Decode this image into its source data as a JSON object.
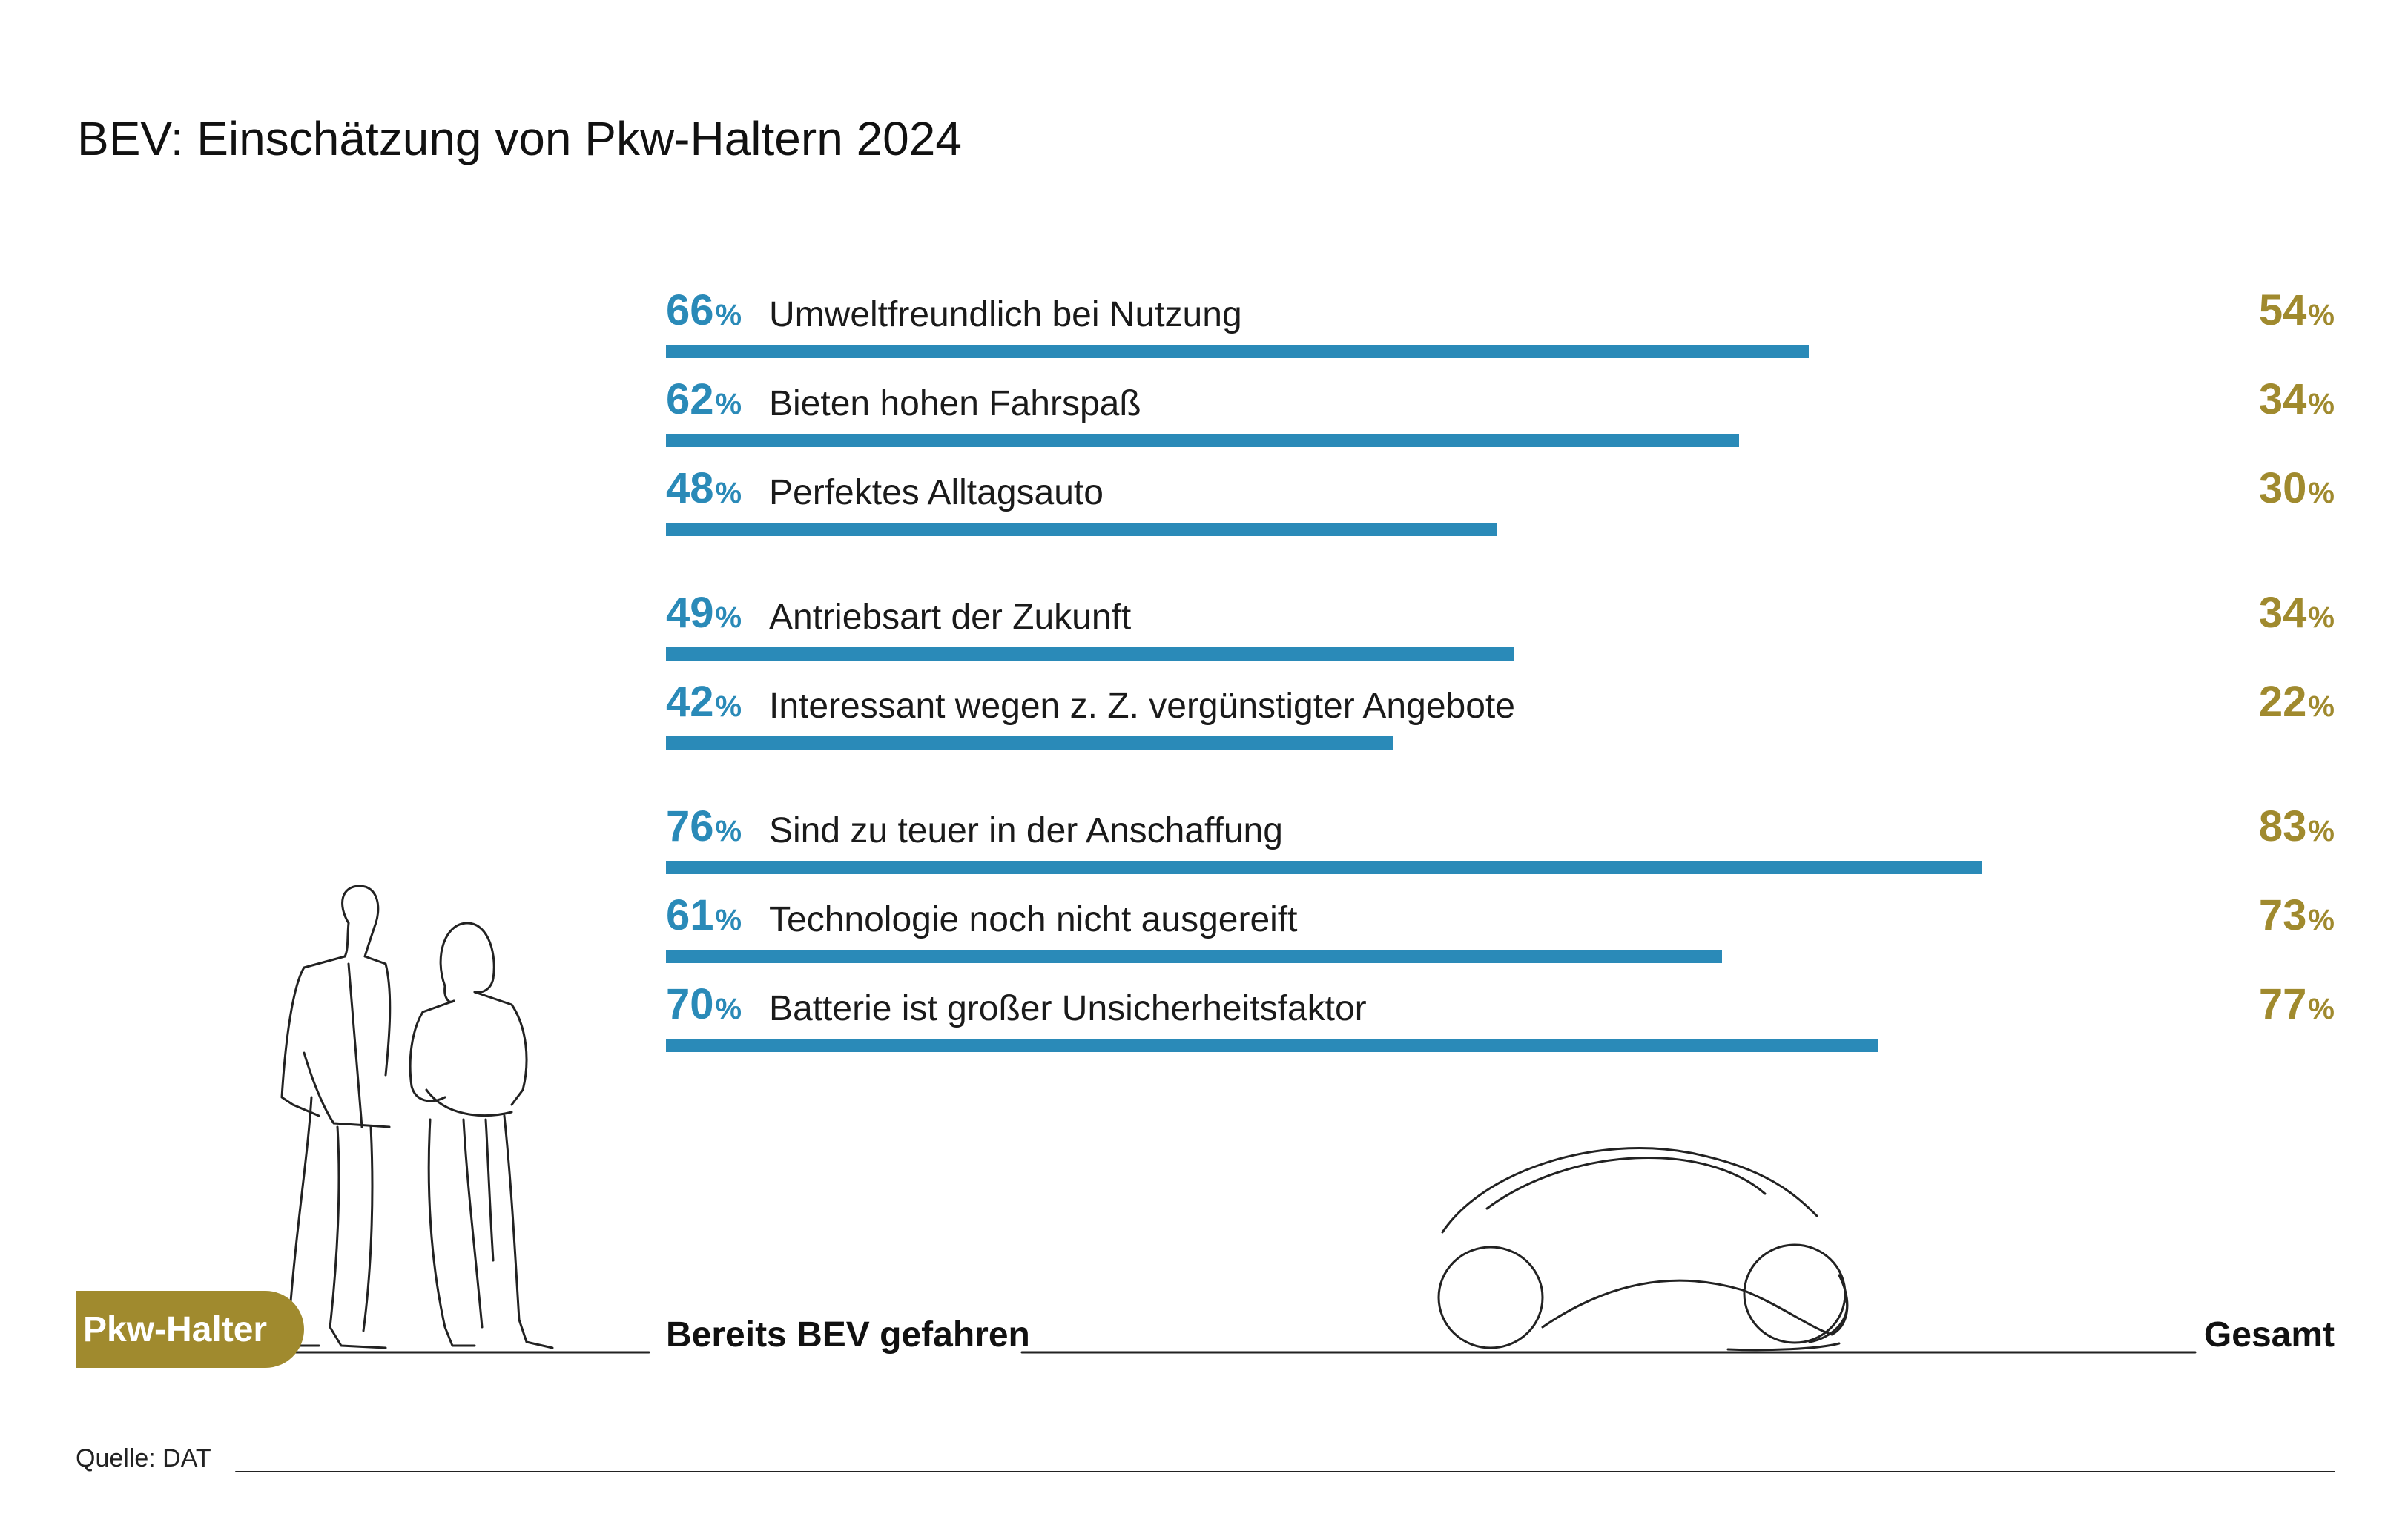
{
  "title": "BEV: Einschätzung von Pkw-Haltern 2024",
  "colors": {
    "bev": "#2a8ab8",
    "total": "#a08a2e",
    "line": "#222222"
  },
  "legend": {
    "group_label": "Pkw-Halter",
    "bev_label": "Bereits BEV gefahren",
    "total_label": "Gesamt"
  },
  "source": "Quelle: DAT",
  "chart_data": {
    "type": "bar",
    "orientation": "horizontal",
    "unit": "%",
    "categories": [
      "Umweltfreundlich bei Nutzung",
      "Bieten hohen Fahrspaß",
      "Perfektes Alltagsauto",
      "Antriebsart der Zukunft",
      "Interessant wegen z. Z. vergünstigter Angebote",
      "Sind zu teuer in der Anschaffung",
      "Technologie noch nicht ausgereift",
      "Batterie ist großer Unsicherheitsfaktor"
    ],
    "groups": [
      [
        0,
        1,
        2
      ],
      [
        3,
        4
      ],
      [
        5,
        6,
        7
      ]
    ],
    "series": [
      {
        "name": "Bereits BEV gefahren",
        "values": [
          66,
          62,
          48,
          49,
          42,
          76,
          61,
          70
        ]
      },
      {
        "name": "Gesamt",
        "values": [
          54,
          34,
          30,
          34,
          22,
          83,
          73,
          77
        ]
      }
    ],
    "xlim": [
      0,
      100
    ]
  }
}
